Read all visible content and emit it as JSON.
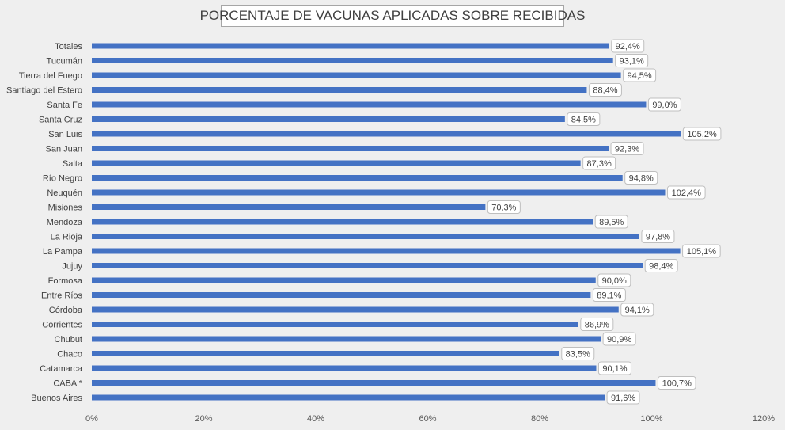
{
  "chart_data": {
    "type": "bar",
    "orientation": "horizontal",
    "title": "PORCENTAJE DE VACUNAS APLICADAS SOBRE RECIBIDAS",
    "xlabel": "",
    "ylabel": "",
    "categories": [
      "Totales",
      "Tucumán",
      "Tierra del Fuego",
      "Santiago del Estero",
      "Santa Fe",
      "Santa Cruz",
      "San Luis",
      "San Juan",
      "Salta",
      "Río Negro",
      "Neuquén",
      "Misiones",
      "Mendoza",
      "La Rioja",
      "La Pampa",
      "Jujuy",
      "Formosa",
      "Entre Ríos",
      "Córdoba",
      "Corrientes",
      "Chubut",
      "Chaco",
      "Catamarca",
      "CABA *",
      "Buenos Aires"
    ],
    "values": [
      92.4,
      93.1,
      94.5,
      88.4,
      99.0,
      84.5,
      105.2,
      92.3,
      87.3,
      94.8,
      102.4,
      70.3,
      89.5,
      97.8,
      105.1,
      98.4,
      90.0,
      89.1,
      94.1,
      86.9,
      90.9,
      83.5,
      90.1,
      100.7,
      91.6
    ],
    "data_labels": [
      "92,4%",
      "93,1%",
      "94,5%",
      "88,4%",
      "99,0%",
      "84,5%",
      "105,2%",
      "92,3%",
      "87,3%",
      "94,8%",
      "102,4%",
      "70,3%",
      "89,5%",
      "97,8%",
      "105,1%",
      "98,4%",
      "90,0%",
      "89,1%",
      "94,1%",
      "86,9%",
      "90,9%",
      "83,5%",
      "90,1%",
      "100,7%",
      "91,6%"
    ],
    "xlim": [
      0,
      120
    ],
    "xticks": [
      0,
      20,
      40,
      60,
      80,
      100,
      120
    ],
    "xtick_labels": [
      "0%",
      "20%",
      "40%",
      "60%",
      "80%",
      "100%",
      "120%"
    ],
    "grid": false,
    "legend": "none",
    "colors": {
      "bar": "#4472c4",
      "label_text": "#404040",
      "tick_text": "#595959",
      "background": "#efefef",
      "label_box": "#ffffff",
      "label_border": "#bfbfbf"
    }
  }
}
